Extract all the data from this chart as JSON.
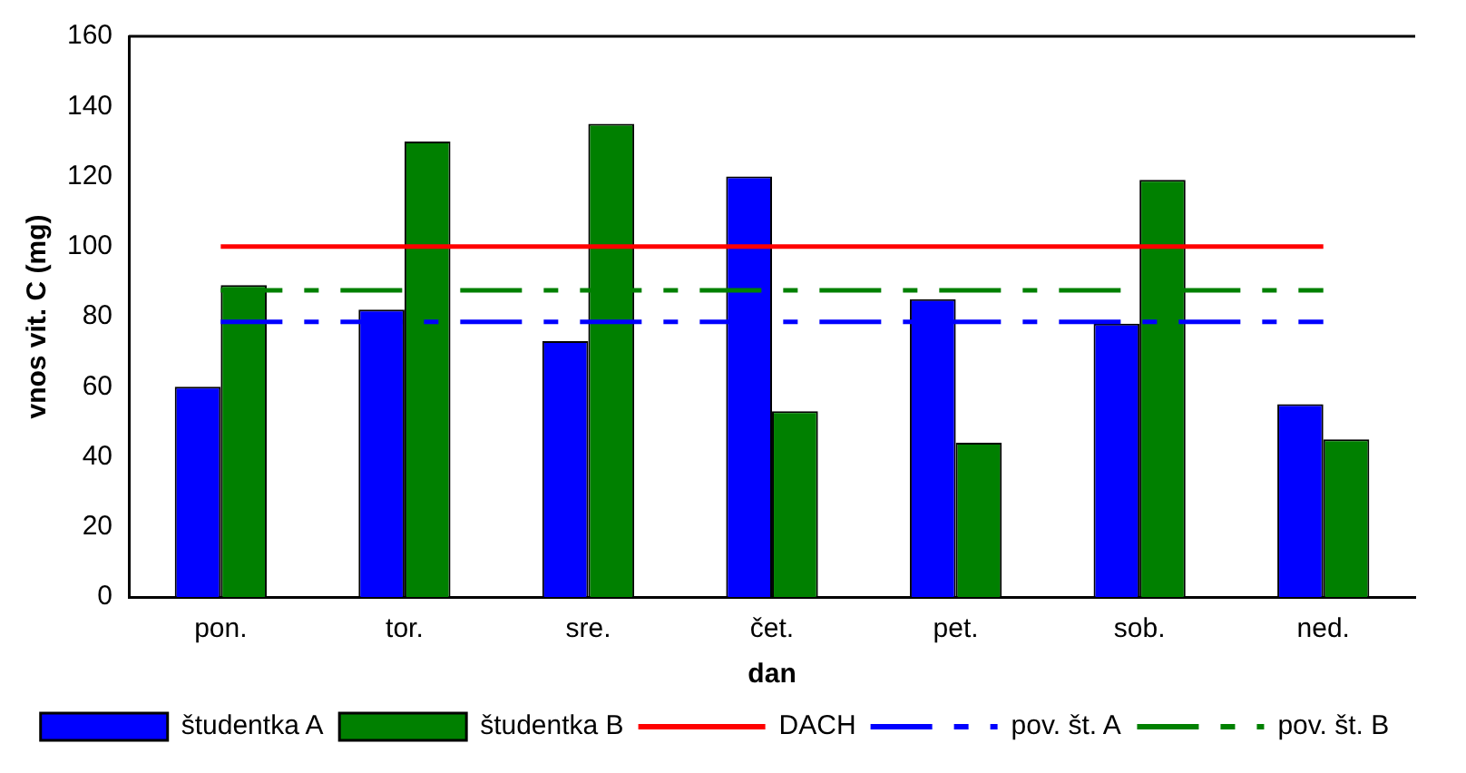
{
  "chart_data": {
    "type": "bar",
    "xlabel": "dan",
    "ylabel": "vnos vit. C (mg)",
    "categories": [
      "pon.",
      "tor.",
      "sre.",
      "čet.",
      "pet.",
      "sob.",
      "ned."
    ],
    "series": [
      {
        "name": "študentka A",
        "color": "#0000ff",
        "values": [
          60,
          82,
          73,
          120,
          85,
          78,
          55
        ]
      },
      {
        "name": "študentka B",
        "color": "#008000",
        "values": [
          89,
          130,
          135,
          53,
          44,
          119,
          45
        ]
      },
      {
        "name": "DACH",
        "type": "line",
        "color": "#ff0000",
        "line_style": "solid",
        "values": [
          100,
          100,
          100,
          100,
          100,
          100,
          100
        ]
      },
      {
        "name": "pov. št. A",
        "type": "line",
        "color": "#0000ff",
        "line_style": "dashed",
        "values": [
          78.5,
          78.5,
          78.5,
          78.5,
          78.5,
          78.5,
          78.5
        ]
      },
      {
        "name": "pov. št. B",
        "type": "line",
        "color": "#008000",
        "line_style": "dashed",
        "values": [
          87.5,
          87.5,
          87.5,
          87.5,
          87.5,
          87.5,
          87.5
        ]
      }
    ],
    "ylim": [
      0,
      160
    ],
    "yticks": [
      0,
      20,
      40,
      60,
      80,
      100,
      120,
      140,
      160
    ],
    "grid": false,
    "legend": "bottom",
    "marker": "none"
  }
}
